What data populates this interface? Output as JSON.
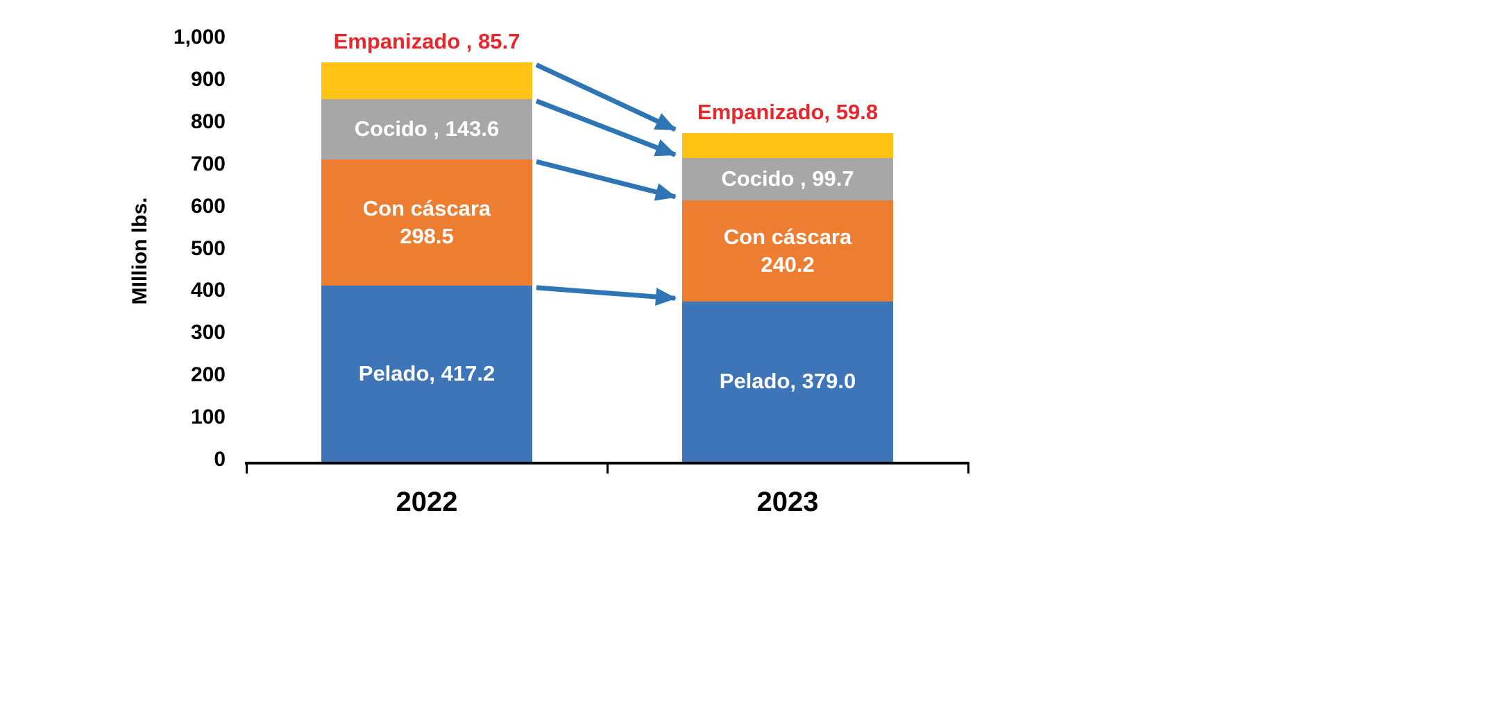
{
  "chart_data": {
    "type": "bar",
    "stacked": true,
    "title": "",
    "ylabel": "MIllion lbs.",
    "ylim": [
      0,
      1000
    ],
    "ytick_step": 100,
    "ytick_labels": [
      "0",
      "100",
      "200",
      "300",
      "400",
      "500",
      "600",
      "700",
      "800",
      "900",
      "1,000"
    ],
    "categories": [
      "2022",
      "2023"
    ],
    "series": [
      {
        "name": "Pelado",
        "color": "#3E74B8",
        "text_color": "#FFFFFF",
        "values": [
          417.2,
          379.0
        ],
        "labels": [
          [
            "Pelado, 417.2"
          ],
          [
            "Pelado, 379.0"
          ]
        ],
        "label_position": "inside"
      },
      {
        "name": "Con cáscara",
        "color": "#ED7D31",
        "text_color": "#FFFFFF",
        "values": [
          298.5,
          240.2
        ],
        "labels": [
          [
            "Con cáscara",
            "298.5"
          ],
          [
            "Con cáscara",
            "240.2"
          ]
        ],
        "label_position": "inside"
      },
      {
        "name": "Cocido",
        "color": "#A7A7A7",
        "text_color": "#FFFFFF",
        "values": [
          143.6,
          99.7
        ],
        "labels": [
          [
            "Cocido , 143.6"
          ],
          [
            "Cocido , 99.7"
          ]
        ],
        "label_position": "inside"
      },
      {
        "name": "Empanizado",
        "color": "#FFC215",
        "text_color": "#E8262B",
        "values": [
          85.7,
          59.8
        ],
        "labels": [
          [
            "Empanizado , 85.7"
          ],
          [
            "Empanizado, 59.8"
          ]
        ],
        "label_position": "outside-top"
      }
    ],
    "arrows": {
      "color": "#2E75B6",
      "connect": "segment-tops"
    },
    "legend": "none",
    "grid": false,
    "background": "#FFFFFF"
  }
}
